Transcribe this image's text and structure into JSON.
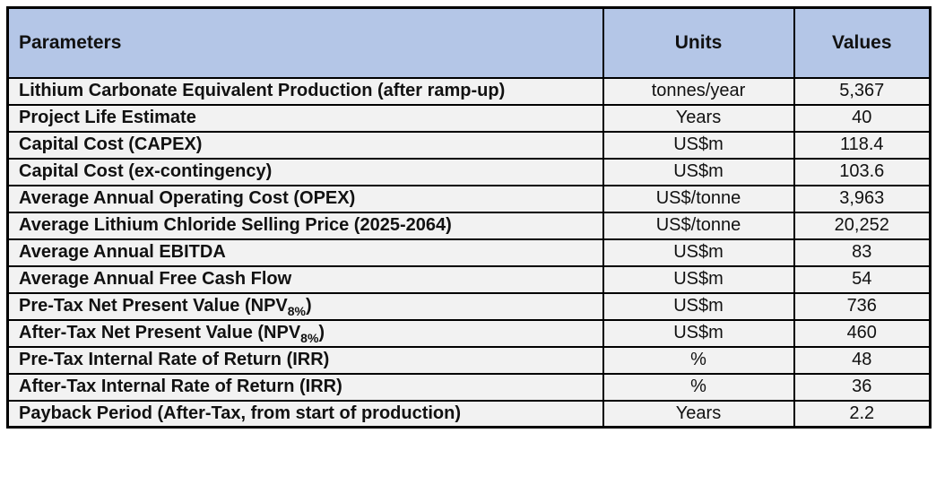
{
  "table": {
    "columns": {
      "parameters": "Parameters",
      "units": "Units",
      "values": "Values"
    },
    "style": {
      "header_bg": "#B4C6E7",
      "row_bg": "#F2F2F2",
      "border_color": "#000000",
      "text_color": "#111111"
    },
    "rows": [
      {
        "parameter": "Lithium Carbonate Equivalent Production (after ramp-up)",
        "units": "tonnes/year",
        "value": "5,367"
      },
      {
        "parameter": "Project Life Estimate",
        "units": "Years",
        "value": "40"
      },
      {
        "parameter": "Capital Cost (CAPEX)",
        "units": "US$m",
        "value": "118.4"
      },
      {
        "parameter": "Capital Cost (ex-contingency)",
        "units": "US$m",
        "value": "103.6"
      },
      {
        "parameter": "Average Annual Operating Cost (OPEX)",
        "units": "US$/tonne",
        "value": "3,963"
      },
      {
        "parameter": "Average Lithium Chloride Selling Price (2025-2064)",
        "units": "US$/tonne",
        "value": "20,252"
      },
      {
        "parameter": "Average Annual EBITDA",
        "units": "US$m",
        "value": "83"
      },
      {
        "parameter": "Average Annual Free Cash Flow",
        "units": "US$m",
        "value": "54"
      },
      {
        "parameter": "Pre-Tax Net Present Value (NPV",
        "parameter_sub": "8%",
        "parameter_after": ")",
        "units": "US$m",
        "value": "736"
      },
      {
        "parameter": "After-Tax Net Present Value (NPV",
        "parameter_sub": "8%",
        "parameter_after": ")",
        "units": "US$m",
        "value": "460"
      },
      {
        "parameter": "Pre-Tax Internal Rate of Return (IRR)",
        "units": "%",
        "value": "48"
      },
      {
        "parameter": "After-Tax Internal Rate of Return (IRR)",
        "units": "%",
        "value": "36"
      },
      {
        "parameter": "Payback Period (After-Tax, from start of production)",
        "units": "Years",
        "value": "2.2"
      }
    ]
  }
}
